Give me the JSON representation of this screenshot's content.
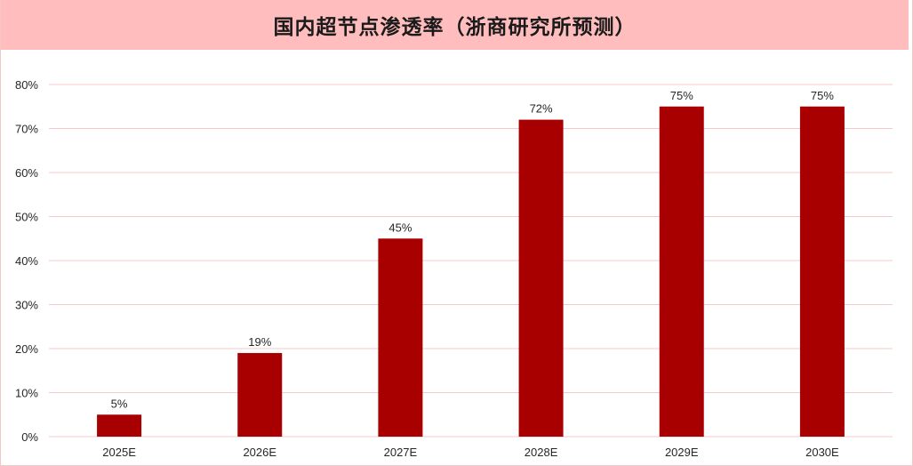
{
  "chart_data": {
    "type": "bar",
    "title": "国内超节点渗透率（浙商研究所预测）",
    "categories": [
      "2025E",
      "2026E",
      "2027E",
      "2028E",
      "2029E",
      "2030E"
    ],
    "values": [
      5,
      19,
      45,
      72,
      75,
      75
    ],
    "data_labels": [
      "5%",
      "19%",
      "45%",
      "72%",
      "75%",
      "75%"
    ],
    "ylim": [
      0,
      80
    ],
    "yticks": [
      0,
      10,
      20,
      30,
      40,
      50,
      60,
      70,
      80
    ],
    "ytick_labels": [
      "0%",
      "10%",
      "20%",
      "30%",
      "40%",
      "50%",
      "60%",
      "70%",
      "80%"
    ],
    "xlabel": "",
    "ylabel": "",
    "grid": true,
    "legend": "none",
    "colors": {
      "bar": "#a80000",
      "grid": "#f5c9c9",
      "title_bg": "#ffbdbd"
    }
  }
}
